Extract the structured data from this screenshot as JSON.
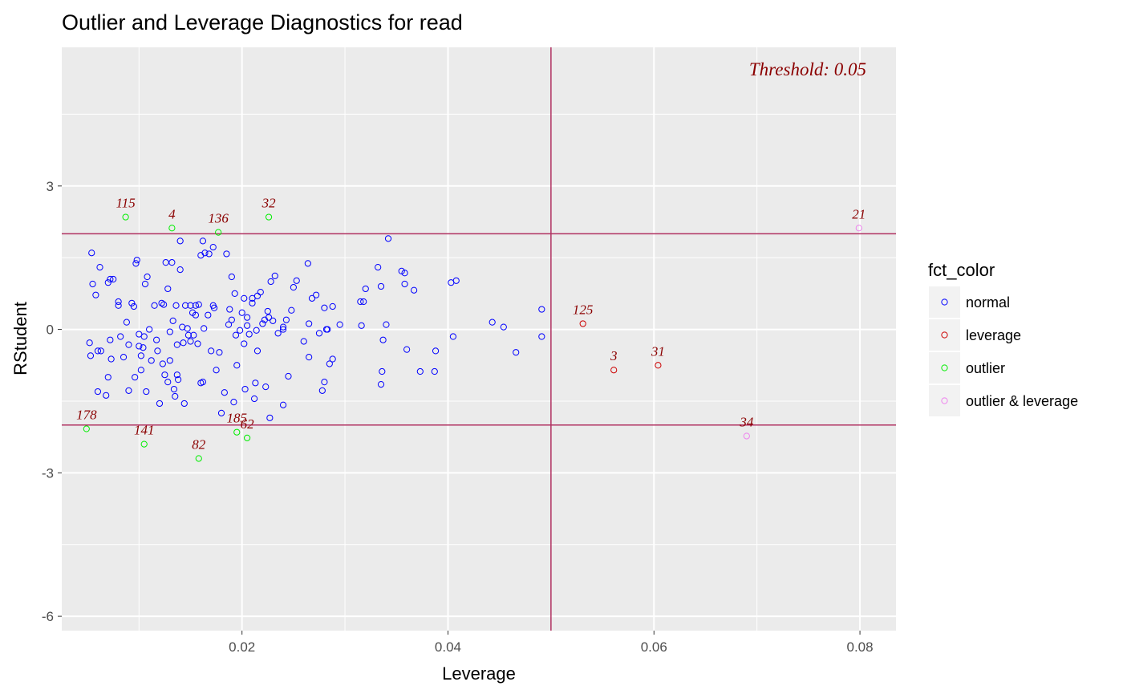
{
  "colors": {
    "panel": "#ebebeb",
    "grid": "#ffffff",
    "ref_line": "#b03060",
    "label": "#8b0000",
    "normal": "#0000ff",
    "leverage": "#cc0000",
    "outlier": "#00ee00",
    "outlier_leverage": "#ee82ee"
  },
  "chart_data": {
    "type": "scatter",
    "title": "Outlier and Leverage Diagnostics for read",
    "xlabel": "Leverage",
    "ylabel": "RStudent",
    "xlim": [
      0.0025,
      0.0835
    ],
    "ylim": [
      -6.3,
      5.9
    ],
    "x_ticks": [
      0.02,
      0.04,
      0.06,
      0.08
    ],
    "x_tick_labels": [
      "0.02",
      "0.04",
      "0.06",
      "0.08"
    ],
    "y_ticks": [
      -6,
      -3,
      0,
      3
    ],
    "y_tick_labels": [
      "-6",
      "-3",
      "0",
      "3"
    ],
    "grid": true,
    "hlines": [
      -2,
      2
    ],
    "vline": 0.05,
    "annotation": "Threshold: 0.05",
    "legend": {
      "title": "fct_color",
      "placement": "right",
      "entries": [
        {
          "key": "normal",
          "label": "normal"
        },
        {
          "key": "leverage",
          "label": "leverage"
        },
        {
          "key": "outlier",
          "label": "outlier"
        },
        {
          "key": "outlier_leverage",
          "label": "outlier & leverage"
        }
      ]
    },
    "series": [
      {
        "name": "normal",
        "points": [
          [
            0.0054,
            1.6
          ],
          [
            0.0055,
            0.95
          ],
          [
            0.0053,
            -0.55
          ],
          [
            0.0052,
            -0.28
          ],
          [
            0.0058,
            0.72
          ],
          [
            0.006,
            -0.45
          ],
          [
            0.0062,
            1.3
          ],
          [
            0.0063,
            -0.45
          ],
          [
            0.006,
            -1.3
          ],
          [
            0.0068,
            -1.38
          ],
          [
            0.007,
            -1.0
          ],
          [
            0.007,
            0.98
          ],
          [
            0.0072,
            1.05
          ],
          [
            0.0075,
            1.05
          ],
          [
            0.0072,
            -0.22
          ],
          [
            0.0073,
            -0.62
          ],
          [
            0.008,
            0.58
          ],
          [
            0.008,
            0.5
          ],
          [
            0.0082,
            -0.15
          ],
          [
            0.0085,
            -0.58
          ],
          [
            0.0088,
            0.15
          ],
          [
            0.009,
            -0.32
          ],
          [
            0.009,
            -1.28
          ],
          [
            0.0093,
            0.55
          ],
          [
            0.0095,
            0.48
          ],
          [
            0.0096,
            -1.0
          ],
          [
            0.0097,
            1.38
          ],
          [
            0.0098,
            1.45
          ],
          [
            0.01,
            -0.35
          ],
          [
            0.01,
            -0.1
          ],
          [
            0.0102,
            -0.55
          ],
          [
            0.0102,
            -0.85
          ],
          [
            0.0104,
            -0.38
          ],
          [
            0.0105,
            -0.15
          ],
          [
            0.0106,
            0.95
          ],
          [
            0.0107,
            -1.3
          ],
          [
            0.0108,
            1.1
          ],
          [
            0.011,
            0.0
          ],
          [
            0.0112,
            -0.65
          ],
          [
            0.0115,
            0.5
          ],
          [
            0.0117,
            -0.22
          ],
          [
            0.0118,
            -0.45
          ],
          [
            0.012,
            -1.55
          ],
          [
            0.0122,
            0.55
          ],
          [
            0.0123,
            -0.72
          ],
          [
            0.0124,
            0.52
          ],
          [
            0.0125,
            -0.95
          ],
          [
            0.0126,
            1.4
          ],
          [
            0.0128,
            0.85
          ],
          [
            0.0128,
            -1.1
          ],
          [
            0.013,
            -0.05
          ],
          [
            0.013,
            -0.65
          ],
          [
            0.0132,
            1.4
          ],
          [
            0.0133,
            0.18
          ],
          [
            0.0134,
            -1.25
          ],
          [
            0.0135,
            -1.4
          ],
          [
            0.0136,
            0.5
          ],
          [
            0.0137,
            -0.32
          ],
          [
            0.0137,
            -0.95
          ],
          [
            0.0138,
            -1.05
          ],
          [
            0.014,
            1.25
          ],
          [
            0.014,
            1.85
          ],
          [
            0.0142,
            0.05
          ],
          [
            0.0143,
            -0.28
          ],
          [
            0.0144,
            -1.55
          ],
          [
            0.0145,
            0.5
          ],
          [
            0.0147,
            0.02
          ],
          [
            0.0148,
            -0.12
          ],
          [
            0.015,
            0.5
          ],
          [
            0.015,
            -0.25
          ],
          [
            0.0152,
            0.35
          ],
          [
            0.0153,
            -0.12
          ],
          [
            0.0155,
            0.5
          ],
          [
            0.0155,
            0.3
          ],
          [
            0.0157,
            -0.3
          ],
          [
            0.0158,
            0.52
          ],
          [
            0.016,
            -1.12
          ],
          [
            0.016,
            1.55
          ],
          [
            0.0162,
            1.85
          ],
          [
            0.0162,
            -1.1
          ],
          [
            0.0163,
            0.02
          ],
          [
            0.0164,
            1.6
          ],
          [
            0.0167,
            0.3
          ],
          [
            0.0168,
            1.58
          ],
          [
            0.017,
            -0.45
          ],
          [
            0.0172,
            1.72
          ],
          [
            0.0172,
            0.5
          ],
          [
            0.0173,
            0.45
          ],
          [
            0.0175,
            -0.85
          ],
          [
            0.0178,
            -0.48
          ],
          [
            0.018,
            -1.75
          ],
          [
            0.0183,
            -1.32
          ],
          [
            0.0185,
            1.58
          ],
          [
            0.0187,
            0.1
          ],
          [
            0.0188,
            0.42
          ],
          [
            0.019,
            1.1
          ],
          [
            0.019,
            0.2
          ],
          [
            0.0192,
            -1.52
          ],
          [
            0.0193,
            0.75
          ],
          [
            0.0194,
            -0.12
          ],
          [
            0.0195,
            -0.75
          ],
          [
            0.0198,
            -0.02
          ],
          [
            0.02,
            0.35
          ],
          [
            0.0202,
            -0.3
          ],
          [
            0.0202,
            0.65
          ],
          [
            0.0203,
            -1.25
          ],
          [
            0.0205,
            0.08
          ],
          [
            0.0205,
            0.25
          ],
          [
            0.0207,
            -0.1
          ],
          [
            0.021,
            0.55
          ],
          [
            0.021,
            0.65
          ],
          [
            0.0212,
            -1.45
          ],
          [
            0.0213,
            -1.12
          ],
          [
            0.0214,
            -0.02
          ],
          [
            0.0215,
            0.7
          ],
          [
            0.0215,
            -0.45
          ],
          [
            0.0218,
            0.78
          ],
          [
            0.022,
            0.12
          ],
          [
            0.0222,
            0.2
          ],
          [
            0.0223,
            -1.2
          ],
          [
            0.0225,
            0.38
          ],
          [
            0.0226,
            0.25
          ],
          [
            0.0227,
            -1.85
          ],
          [
            0.0228,
            1.0
          ],
          [
            0.023,
            0.18
          ],
          [
            0.0232,
            1.12
          ],
          [
            0.0235,
            -0.08
          ],
          [
            0.024,
            0.0
          ],
          [
            0.024,
            0.05
          ],
          [
            0.024,
            -1.58
          ],
          [
            0.0243,
            0.2
          ],
          [
            0.0245,
            -0.98
          ],
          [
            0.0248,
            0.4
          ],
          [
            0.025,
            0.88
          ],
          [
            0.0253,
            1.02
          ],
          [
            0.026,
            -0.25
          ],
          [
            0.0264,
            1.38
          ],
          [
            0.0265,
            -0.58
          ],
          [
            0.0265,
            0.12
          ],
          [
            0.0268,
            0.65
          ],
          [
            0.0272,
            0.72
          ],
          [
            0.0275,
            -0.08
          ],
          [
            0.0278,
            -1.28
          ],
          [
            0.028,
            0.45
          ],
          [
            0.028,
            -1.1
          ],
          [
            0.0282,
            0.0
          ],
          [
            0.0283,
            0.0
          ],
          [
            0.0285,
            -0.72
          ],
          [
            0.0288,
            -0.62
          ],
          [
            0.0288,
            0.48
          ],
          [
            0.0295,
            0.1
          ],
          [
            0.0315,
            0.58
          ],
          [
            0.0318,
            0.58
          ],
          [
            0.032,
            0.85
          ],
          [
            0.0316,
            0.08
          ],
          [
            0.0332,
            1.3
          ],
          [
            0.0335,
            0.9
          ],
          [
            0.0335,
            -1.15
          ],
          [
            0.0336,
            -0.88
          ],
          [
            0.0337,
            -0.22
          ],
          [
            0.034,
            0.1
          ],
          [
            0.0342,
            1.9
          ],
          [
            0.0355,
            1.22
          ],
          [
            0.0358,
            0.95
          ],
          [
            0.0358,
            1.18
          ],
          [
            0.036,
            -0.42
          ],
          [
            0.0367,
            0.82
          ],
          [
            0.0373,
            -0.88
          ],
          [
            0.0387,
            -0.88
          ],
          [
            0.0388,
            -0.45
          ],
          [
            0.0403,
            0.98
          ],
          [
            0.0405,
            -0.15
          ],
          [
            0.0408,
            1.02
          ],
          [
            0.0443,
            0.15
          ],
          [
            0.0454,
            0.05
          ],
          [
            0.0466,
            -0.48
          ],
          [
            0.0491,
            0.42
          ],
          [
            0.0491,
            -0.15
          ]
        ]
      },
      {
        "name": "leverage",
        "points": [
          [
            0.0531,
            0.12
          ],
          [
            0.0561,
            -0.85
          ],
          [
            0.0604,
            -0.75
          ]
        ],
        "labels": [
          "125",
          "3",
          "31"
        ]
      },
      {
        "name": "outlier",
        "points": [
          [
            0.0049,
            -2.08
          ],
          [
            0.0087,
            2.35
          ],
          [
            0.0105,
            -2.4
          ],
          [
            0.0132,
            2.12
          ],
          [
            0.0158,
            -2.7
          ],
          [
            0.0177,
            2.03
          ],
          [
            0.0195,
            -2.15
          ],
          [
            0.0205,
            -2.27
          ],
          [
            0.0226,
            2.35
          ]
        ],
        "labels": [
          "178",
          "115",
          "141",
          "4",
          "82",
          "136",
          "185",
          "62",
          "32"
        ]
      },
      {
        "name": "outlier_leverage",
        "points": [
          [
            0.069,
            -2.23
          ],
          [
            0.0799,
            2.12
          ]
        ],
        "labels": [
          "34",
          "21"
        ]
      }
    ]
  }
}
